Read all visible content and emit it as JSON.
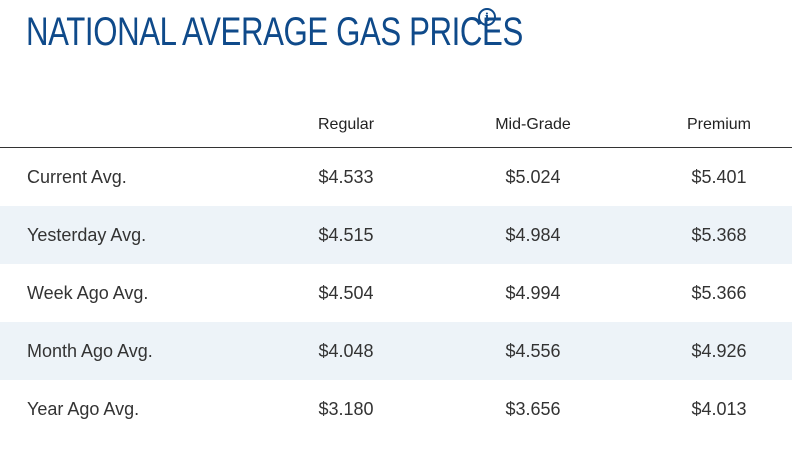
{
  "title": "NATIONAL AVERAGE GAS PRICES",
  "info_icon": "info-icon",
  "colors": {
    "title": "#0f4a8a",
    "shaded_row": "#edf3f8"
  },
  "columns": [
    "Regular",
    "Mid-Grade",
    "Premium"
  ],
  "rows": [
    {
      "label": "Current Avg.",
      "values": [
        "$4.533",
        "$5.024",
        "$5.401"
      ]
    },
    {
      "label": "Yesterday Avg.",
      "values": [
        "$4.515",
        "$4.984",
        "$5.368"
      ]
    },
    {
      "label": "Week Ago Avg.",
      "values": [
        "$4.504",
        "$4.994",
        "$5.366"
      ]
    },
    {
      "label": "Month Ago Avg.",
      "values": [
        "$4.048",
        "$4.556",
        "$4.926"
      ]
    },
    {
      "label": "Year Ago Avg.",
      "values": [
        "$3.180",
        "$3.656",
        "$4.013"
      ]
    }
  ]
}
